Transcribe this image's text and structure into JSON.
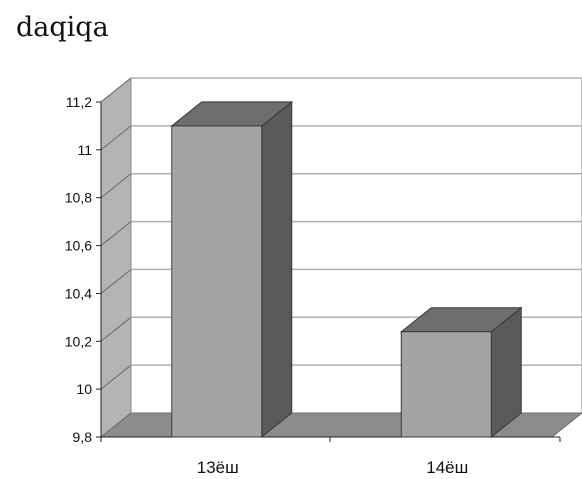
{
  "unit_label": "daqiqa",
  "chart_data": {
    "type": "bar",
    "style": "3d-column",
    "categories": [
      "13ёш",
      "14ёш"
    ],
    "values": [
      11.1,
      10.24
    ],
    "ylim": [
      9.8,
      11.2
    ],
    "yticks": [
      9.8,
      10,
      10.2,
      10.4,
      10.6,
      10.8,
      11,
      11.2
    ],
    "ytick_labels": [
      "9,8",
      "10",
      "10,2",
      "10,4",
      "10,6",
      "10,8",
      "11",
      "11,2"
    ],
    "grid": true,
    "colors": {
      "bar_front": "#a4a4a4",
      "bar_top": "#6e6e6e",
      "bar_side": "#5a5a5a",
      "floor": "#8c8c8c",
      "side_wall": "#b4b4b4",
      "gridline": "#b0b0b0"
    }
  }
}
